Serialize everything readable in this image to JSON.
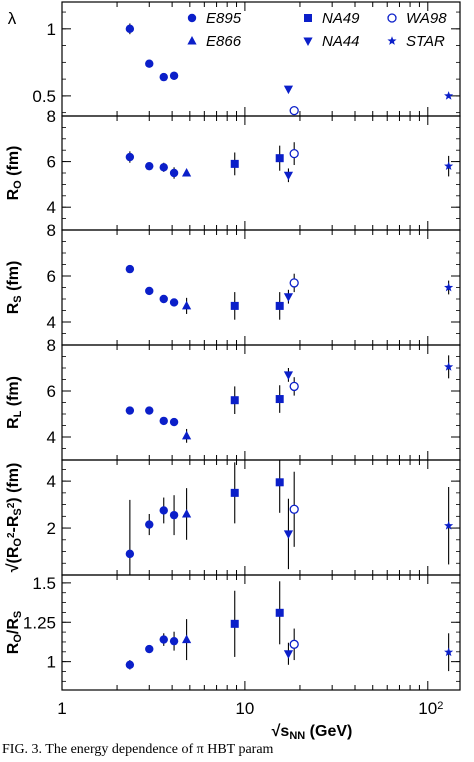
{
  "figure_caption": "FIG. 3.   The energy dependence of π HBT param",
  "chart_data": [
    {
      "type": "scatter",
      "panel": "lambda",
      "ylabel": "λ",
      "yscale": "linear",
      "ylim": [
        0.35,
        1.2
      ],
      "yticks": [
        0.5,
        1
      ],
      "xscale": "log",
      "xlim": [
        1,
        150
      ],
      "legend": [
        {
          "name": "E895",
          "marker": "circle-filled"
        },
        {
          "name": "NA49",
          "marker": "square-filled"
        },
        {
          "name": "WA98",
          "marker": "circle-open"
        },
        {
          "name": "E866",
          "marker": "triangle-up"
        },
        {
          "name": "NA44",
          "marker": "triangle-down"
        },
        {
          "name": "STAR",
          "marker": "star"
        }
      ],
      "legend_position": "top-right",
      "series": [
        {
          "name": "E895",
          "marker": "circle-filled",
          "points": [
            {
              "x": 2.35,
              "y": 1.0,
              "err": 0.04
            },
            {
              "x": 3.0,
              "y": 0.74,
              "err": 0.02
            },
            {
              "x": 3.6,
              "y": 0.64,
              "err": 0.02
            },
            {
              "x": 4.1,
              "y": 0.65,
              "err": 0.03
            }
          ]
        },
        {
          "name": "NA44",
          "marker": "triangle-down",
          "points": [
            {
              "x": 17.3,
              "y": 0.55,
              "err": 0
            }
          ]
        },
        {
          "name": "WA98",
          "marker": "circle-open",
          "points": [
            {
              "x": 18.6,
              "y": 0.39,
              "err": 0
            }
          ]
        },
        {
          "name": "STAR",
          "marker": "star",
          "points": [
            {
              "x": 130,
              "y": 0.5,
              "err": 0
            }
          ]
        }
      ]
    },
    {
      "type": "scatter",
      "panel": "Ro",
      "ylabel": "R_o (fm)",
      "yscale": "linear",
      "ylim": [
        3.0,
        8.0
      ],
      "yticks": [
        4,
        6,
        8
      ],
      "xscale": "log",
      "xlim": [
        1,
        150
      ],
      "series": [
        {
          "name": "E895",
          "marker": "circle-filled",
          "points": [
            {
              "x": 2.35,
              "y": 6.2,
              "err": 0.25
            },
            {
              "x": 3.0,
              "y": 5.8,
              "err": 0.15
            },
            {
              "x": 3.6,
              "y": 5.75,
              "err": 0.2
            },
            {
              "x": 4.1,
              "y": 5.5,
              "err": 0.25
            }
          ]
        },
        {
          "name": "E866",
          "marker": "triangle-up",
          "points": [
            {
              "x": 4.8,
              "y": 5.5,
              "err": 0.15
            }
          ]
        },
        {
          "name": "NA49",
          "marker": "square-filled",
          "points": [
            {
              "x": 8.8,
              "y": 5.9,
              "err": 0.5
            },
            {
              "x": 15.5,
              "y": 6.15,
              "err": 0.55
            }
          ]
        },
        {
          "name": "NA44",
          "marker": "triangle-down",
          "points": [
            {
              "x": 17.3,
              "y": 5.4,
              "err": 0.3
            }
          ]
        },
        {
          "name": "WA98",
          "marker": "circle-open",
          "points": [
            {
              "x": 18.6,
              "y": 6.35,
              "err": 0.5
            }
          ]
        },
        {
          "name": "STAR",
          "marker": "star",
          "points": [
            {
              "x": 130,
              "y": 5.8,
              "err": 0.45
            }
          ]
        }
      ]
    },
    {
      "type": "scatter",
      "panel": "Rs",
      "ylabel": "R_s (fm)",
      "yscale": "linear",
      "ylim": [
        3.0,
        8.0
      ],
      "yticks": [
        4,
        6,
        8
      ],
      "xscale": "log",
      "xlim": [
        1,
        150
      ],
      "series": [
        {
          "name": "E895",
          "marker": "circle-filled",
          "points": [
            {
              "x": 2.35,
              "y": 6.3,
              "err": 0.1
            },
            {
              "x": 3.0,
              "y": 5.35,
              "err": 0.1
            },
            {
              "x": 3.6,
              "y": 5.0,
              "err": 0.1
            },
            {
              "x": 4.1,
              "y": 4.85,
              "err": 0.15
            }
          ]
        },
        {
          "name": "E866",
          "marker": "triangle-up",
          "points": [
            {
              "x": 4.8,
              "y": 4.7,
              "err": 0.35
            }
          ]
        },
        {
          "name": "NA49",
          "marker": "square-filled",
          "points": [
            {
              "x": 8.8,
              "y": 4.7,
              "err": 0.6
            },
            {
              "x": 15.5,
              "y": 4.7,
              "err": 0.6
            }
          ]
        },
        {
          "name": "NA44",
          "marker": "triangle-down",
          "points": [
            {
              "x": 17.3,
              "y": 5.1,
              "err": 0.3
            }
          ]
        },
        {
          "name": "WA98",
          "marker": "circle-open",
          "points": [
            {
              "x": 18.6,
              "y": 5.7,
              "err": 0.4
            }
          ]
        },
        {
          "name": "STAR",
          "marker": "star",
          "points": [
            {
              "x": 130,
              "y": 5.5,
              "err": 0.3
            }
          ]
        }
      ]
    },
    {
      "type": "scatter",
      "panel": "Rl",
      "ylabel": "R_l (fm)",
      "yscale": "linear",
      "ylim": [
        3.0,
        8.0
      ],
      "yticks": [
        4,
        6,
        8
      ],
      "xscale": "log",
      "xlim": [
        1,
        150
      ],
      "series": [
        {
          "name": "E895",
          "marker": "circle-filled",
          "points": [
            {
              "x": 2.35,
              "y": 5.15,
              "err": 0.05
            },
            {
              "x": 3.0,
              "y": 5.15,
              "err": 0.05
            },
            {
              "x": 3.6,
              "y": 4.7,
              "err": 0.05
            },
            {
              "x": 4.1,
              "y": 4.65,
              "err": 0.1
            }
          ]
        },
        {
          "name": "E866",
          "marker": "triangle-up",
          "points": [
            {
              "x": 4.8,
              "y": 4.05,
              "err": 0.3
            }
          ]
        },
        {
          "name": "NA49",
          "marker": "square-filled",
          "points": [
            {
              "x": 8.8,
              "y": 5.6,
              "err": 0.6
            },
            {
              "x": 15.5,
              "y": 5.65,
              "err": 0.6
            }
          ]
        },
        {
          "name": "NA44",
          "marker": "triangle-down",
          "points": [
            {
              "x": 17.3,
              "y": 6.7,
              "err": 0.3
            }
          ]
        },
        {
          "name": "WA98",
          "marker": "circle-open",
          "points": [
            {
              "x": 18.6,
              "y": 6.2,
              "err": 0.4
            }
          ]
        },
        {
          "name": "STAR",
          "marker": "star",
          "points": [
            {
              "x": 130,
              "y": 7.05,
              "err": 0.5
            }
          ]
        }
      ]
    },
    {
      "type": "scatter",
      "panel": "sqrt_diff",
      "ylabel": "√(R_o²-R_s²) (fm)",
      "yscale": "linear",
      "ylim": [
        0,
        4.9
      ],
      "yticks": [
        2,
        4
      ],
      "xscale": "log",
      "xlim": [
        1,
        150
      ],
      "series": [
        {
          "name": "E895",
          "marker": "circle-filled",
          "points": [
            {
              "x": 2.35,
              "y": 0.9,
              "err": 2.3
            },
            {
              "x": 3.0,
              "y": 2.15,
              "err": 0.45
            },
            {
              "x": 3.6,
              "y": 2.75,
              "err": 0.55
            },
            {
              "x": 4.1,
              "y": 2.55,
              "err": 0.85
            }
          ]
        },
        {
          "name": "E866",
          "marker": "triangle-up",
          "points": [
            {
              "x": 4.8,
              "y": 2.6,
              "err": 1.1
            }
          ]
        },
        {
          "name": "NA49",
          "marker": "square-filled",
          "points": [
            {
              "x": 8.8,
              "y": 3.5,
              "err": 1.3
            },
            {
              "x": 15.5,
              "y": 3.95,
              "err": 1.3
            }
          ]
        },
        {
          "name": "NA44",
          "marker": "triangle-down",
          "points": [
            {
              "x": 17.3,
              "y": 1.75,
              "err": 1.5
            }
          ]
        },
        {
          "name": "WA98",
          "marker": "circle-open",
          "points": [
            {
              "x": 18.6,
              "y": 2.8,
              "err": 1.6
            }
          ]
        },
        {
          "name": "STAR",
          "marker": "star",
          "points": [
            {
              "x": 130,
              "y": 2.1,
              "err": 1.65
            }
          ]
        }
      ]
    },
    {
      "type": "scatter",
      "panel": "Ro_over_Rs",
      "ylabel": "R_o/R_s",
      "yscale": "linear",
      "ylim": [
        0.82,
        1.55
      ],
      "yticks": [
        1,
        1.25,
        1.5
      ],
      "xscale": "log",
      "xlim": [
        1,
        150
      ],
      "xlabel": "√s_NN (GeV)",
      "xtick_labels": [
        "1",
        "10",
        "10²"
      ],
      "series": [
        {
          "name": "E895",
          "marker": "circle-filled",
          "points": [
            {
              "x": 2.35,
              "y": 0.98,
              "err": 0.03
            },
            {
              "x": 3.0,
              "y": 1.08,
              "err": 0.02
            },
            {
              "x": 3.6,
              "y": 1.14,
              "err": 0.04
            },
            {
              "x": 4.1,
              "y": 1.13,
              "err": 0.06
            }
          ]
        },
        {
          "name": "E866",
          "marker": "triangle-up",
          "points": [
            {
              "x": 4.8,
              "y": 1.14,
              "err": 0.13
            }
          ]
        },
        {
          "name": "NA49",
          "marker": "square-filled",
          "points": [
            {
              "x": 8.8,
              "y": 1.24,
              "err": 0.21
            },
            {
              "x": 15.5,
              "y": 1.31,
              "err": 0.2
            }
          ]
        },
        {
          "name": "NA44",
          "marker": "triangle-down",
          "points": [
            {
              "x": 17.3,
              "y": 1.05,
              "err": 0.07
            }
          ]
        },
        {
          "name": "WA98",
          "marker": "circle-open",
          "points": [
            {
              "x": 18.6,
              "y": 1.11,
              "err": 0.1
            }
          ]
        },
        {
          "name": "STAR",
          "marker": "star",
          "points": [
            {
              "x": 130,
              "y": 1.06,
              "err": 0.12
            }
          ]
        }
      ]
    }
  ]
}
